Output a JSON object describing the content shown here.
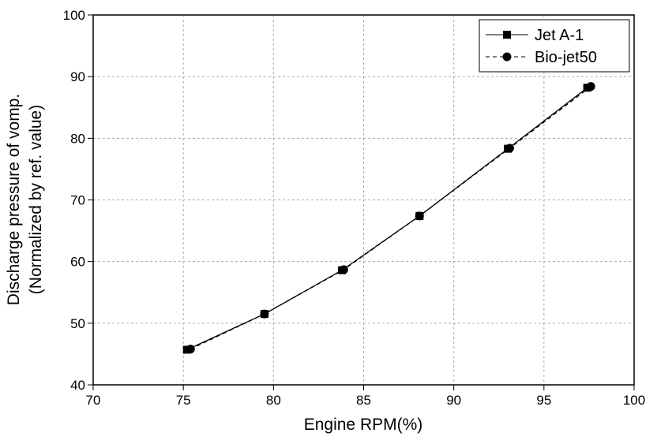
{
  "chart_data": {
    "type": "line",
    "xlabel": "Engine RPM(%)",
    "ylabel": [
      "Discharge pressure of vomp.",
      "(Normalized by ref. value)"
    ],
    "xlim": [
      70,
      100
    ],
    "xticks": [
      70,
      75,
      80,
      85,
      90,
      95,
      100
    ],
    "ylim": [
      40,
      100
    ],
    "yticks": [
      40,
      50,
      60,
      70,
      80,
      90,
      100
    ],
    "grid": true,
    "legend": "upper right",
    "series": [
      {
        "name": "Jet A-1",
        "color": "#000000",
        "linestyle": "solid",
        "marker": "square",
        "x": [
          75.2,
          79.5,
          83.8,
          88.1,
          93.0,
          97.4
        ],
        "values": [
          45.7,
          51.5,
          58.6,
          67.4,
          78.3,
          88.2
        ]
      },
      {
        "name": "Bio-jet50",
        "color": "#000000",
        "linestyle": "dashed",
        "marker": "circle",
        "x": [
          75.4,
          79.5,
          83.9,
          88.1,
          93.1,
          97.6
        ],
        "values": [
          45.8,
          51.5,
          58.7,
          67.4,
          78.4,
          88.4
        ]
      }
    ]
  }
}
